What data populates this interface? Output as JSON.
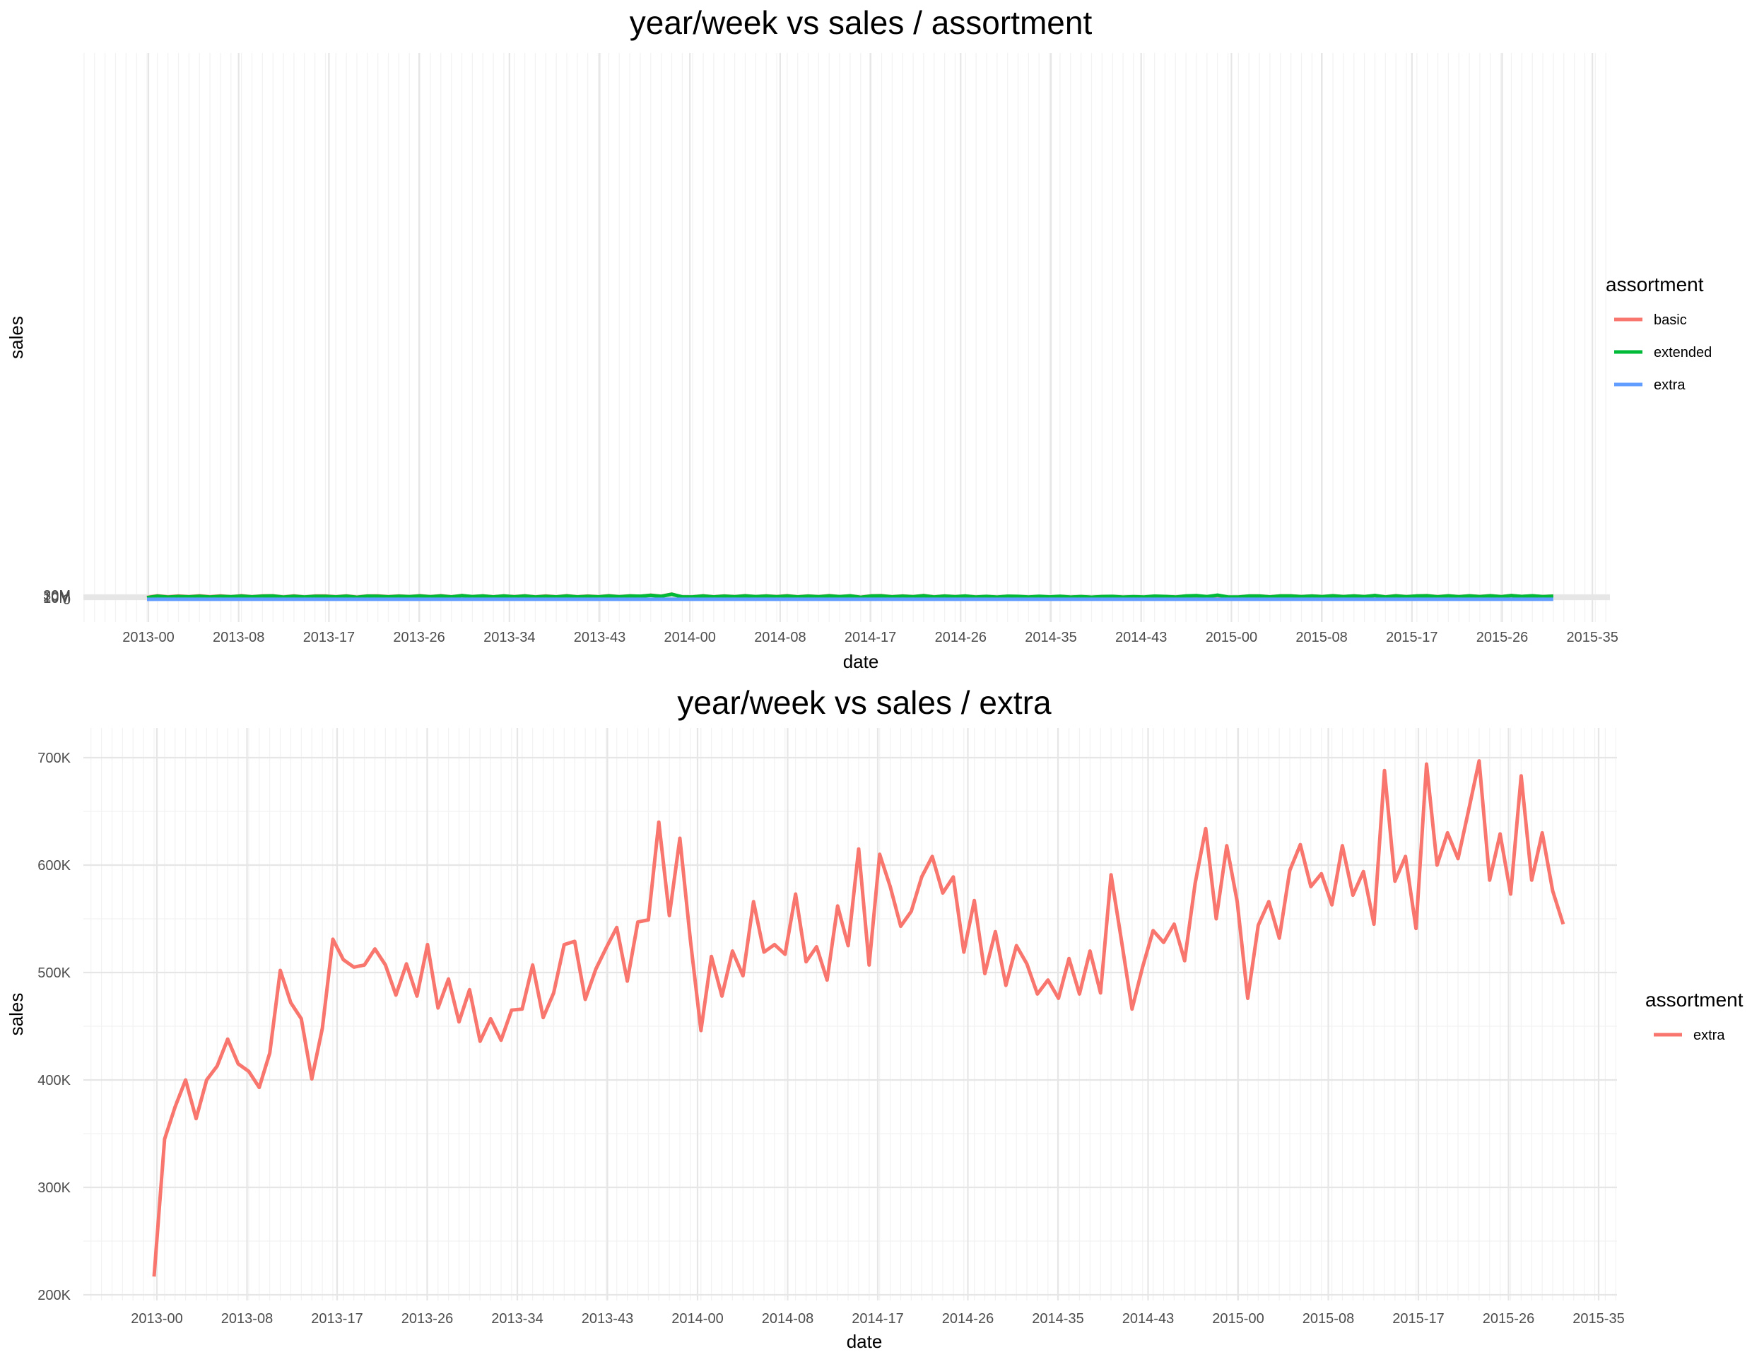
{
  "chart_data": [
    {
      "type": "line",
      "title": "year/week vs sales / assortment",
      "xlabel": "date",
      "ylabel": "sales",
      "x_ticks": [
        "2013-00",
        "2013-08",
        "2013-17",
        "2013-26",
        "2013-34",
        "2013-43",
        "2014-00",
        "2014-08",
        "2014-17",
        "2014-26",
        "2014-35",
        "2014-43",
        "2015-00",
        "2015-08",
        "2015-17",
        "2015-26",
        "2015-35"
      ],
      "y_ticks": [
        "0",
        "10M",
        "20M",
        "30M"
      ],
      "ylim": [
        -1500000,
        40000000
      ],
      "grid": true,
      "legend": {
        "title": "assortment",
        "position": "right"
      },
      "series": [
        {
          "name": "basic",
          "color": "#F8766D",
          "values": [
            13.5,
            26,
            17.5,
            24.4,
            18.5,
            25.8,
            17.8,
            25,
            18.2,
            26.6,
            18,
            25.5,
            25.6,
            16,
            25.1,
            16.5,
            24.1,
            24,
            17.8,
            25.4,
            15.5,
            24.9,
            25,
            18.7,
            24.6,
            19.5,
            26.3,
            18.6,
            26.6,
            17.4,
            27.8,
            19.3,
            25.4,
            17.3,
            25.5,
            18.4,
            26,
            16.8,
            24.2,
            17.6,
            26.1,
            17.6,
            23.7,
            17.8,
            26.3,
            18.5,
            25.5,
            22.4,
            30.6,
            22.6,
            37.9,
            17.2,
            17.6,
            25.9,
            17.5,
            24.9,
            18.3,
            26.9,
            18.5,
            25.2,
            19,
            26.3,
            17.7,
            24.3,
            18.6,
            27.1,
            19,
            25.7,
            15.2,
            25.1,
            26.7,
            18,
            24.6,
            18.6,
            27.8,
            17.1,
            24.4,
            18.7,
            24,
            15.9,
            20.3,
            15.3,
            21.5,
            20.2,
            15.3,
            20.6,
            15.6,
            21.1,
            15.3,
            19.5,
            14.8,
            19.3,
            20.1,
            15.3,
            18,
            15.2,
            22.3,
            19.9,
            16,
            23.6,
            24.9,
            18.2,
            27.5,
            15.2,
            15.9,
            24.3,
            24.7,
            17.7,
            25.4,
            25.3,
            19.3,
            24.2,
            19.6,
            26.2,
            19.2,
            25.4,
            19.5,
            27.9,
            17,
            26.4,
            18.3,
            24.9,
            26.6,
            18.3,
            25.9,
            18.8,
            25.7,
            19.9,
            26.5,
            19,
            27.9,
            20.3,
            25.8,
            19.2,
            23.6
          ]
        },
        {
          "name": "extended",
          "color": "#00BA38",
          "values": [
            12.5,
            23,
            16,
            21.3,
            18.1,
            22.9,
            17.2,
            22.3,
            18.4,
            23.5,
            18,
            23,
            24.6,
            15.8,
            22.6,
            16.6,
            21.6,
            21.9,
            17.6,
            23.1,
            15.2,
            23.2,
            22.6,
            18.2,
            22.6,
            19.1,
            24.3,
            18.5,
            24.5,
            17.4,
            26.8,
            19.6,
            24.1,
            17.3,
            24.3,
            18.1,
            24.4,
            16.9,
            22.3,
            17.4,
            24,
            17.7,
            22,
            17.9,
            24.4,
            18.3,
            24,
            22.7,
            28.9,
            22.4,
            37,
            17.4,
            17.3,
            24.4,
            17.5,
            23.4,
            18.6,
            25.4,
            18.9,
            23.5,
            18.7,
            24.9,
            17.6,
            23.1,
            18.5,
            25.4,
            19,
            25.4,
            15.2,
            24.2,
            25.3,
            18.2,
            23.1,
            18.6,
            26.3,
            17.1,
            23.5,
            18.4,
            24,
            16.6,
            21,
            16,
            22.6,
            21,
            16.4,
            21.8,
            17.6,
            22.1,
            15.8,
            20.3,
            15.3,
            20.1,
            21.3,
            15.8,
            19.4,
            16.6,
            23.1,
            20.8,
            16.6,
            24.8,
            26.9,
            19.6,
            30.5,
            17,
            16.6,
            23.9,
            23.9,
            17.6,
            24.8,
            24.6,
            19.3,
            23.5,
            19.6,
            25.6,
            19.7,
            24.7,
            19.4,
            28,
            16.9,
            25.3,
            18.3,
            24.2,
            26,
            18.2,
            25.2,
            18.7,
            25.2,
            19.8,
            26,
            18.9,
            27.2,
            20.4,
            25.6,
            19.6,
            23.2
          ]
        },
        {
          "name": "extra",
          "color": "#619CFF",
          "values": [
            0.22,
            0.35,
            0.38,
            0.4,
            0.36,
            0.4,
            0.41,
            0.44,
            0.42,
            0.41,
            0.39,
            0.42,
            0.5,
            0.47,
            0.46,
            0.4,
            0.45,
            0.53,
            0.51,
            0.5,
            0.51,
            0.52,
            0.51,
            0.48,
            0.51,
            0.48,
            0.53,
            0.47,
            0.49,
            0.45,
            0.48,
            0.44,
            0.46,
            0.44,
            0.47,
            0.47,
            0.51,
            0.46,
            0.48,
            0.53,
            0.53,
            0.48,
            0.5,
            0.52,
            0.54,
            0.49,
            0.55,
            0.55,
            0.64,
            0.55,
            0.63,
            0.52,
            0.45,
            0.52,
            0.48,
            0.52,
            0.5,
            0.57,
            0.52,
            0.53,
            0.52,
            0.57,
            0.51,
            0.52,
            0.49,
            0.56,
            0.53,
            0.62,
            0.51,
            0.61,
            0.58,
            0.54,
            0.56,
            0.59,
            0.61,
            0.57,
            0.59,
            0.52,
            0.57,
            0.5,
            0.54,
            0.49,
            0.53,
            0.51,
            0.48,
            0.49,
            0.48,
            0.51,
            0.48,
            0.52,
            0.48,
            0.59,
            0.53,
            0.47,
            0.51,
            0.54,
            0.53,
            0.54,
            0.51,
            0.58,
            0.63,
            0.55,
            0.62,
            0.56,
            0.48,
            0.54,
            0.57,
            0.53,
            0.6,
            0.62,
            0.58,
            0.59,
            0.56,
            0.62,
            0.57,
            0.59,
            0.55,
            0.69,
            0.59,
            0.61,
            0.54,
            0.69,
            0.6,
            0.63,
            0.61,
            0.65,
            0.7,
            0.59,
            0.63,
            0.57,
            0.68,
            0.59,
            0.63,
            0.58,
            0.55
          ]
        }
      ]
    },
    {
      "type": "line",
      "title": "year/week vs sales / extra",
      "xlabel": "date",
      "ylabel": "sales",
      "x_ticks": [
        "2013-00",
        "2013-08",
        "2013-17",
        "2013-26",
        "2013-34",
        "2013-43",
        "2014-00",
        "2014-08",
        "2014-17",
        "2014-26",
        "2014-35",
        "2014-43",
        "2015-00",
        "2015-08",
        "2015-17",
        "2015-26",
        "2015-35"
      ],
      "y_ticks": [
        "200K",
        "300K",
        "400K",
        "500K",
        "600K",
        "700K"
      ],
      "ylim": [
        195000,
        715000
      ],
      "grid": true,
      "legend": {
        "title": "assortment",
        "position": "right"
      },
      "series": [
        {
          "name": "extra",
          "color": "#F8766D",
          "values": [
            217,
            345,
            375,
            400,
            364,
            400,
            413,
            438,
            415,
            408,
            393,
            425,
            502,
            472,
            457,
            401,
            448,
            531,
            512,
            505,
            507,
            522,
            507,
            479,
            508,
            478,
            526,
            467,
            494,
            454,
            484,
            436,
            457,
            437,
            465,
            466,
            507,
            458,
            481,
            526,
            529,
            475,
            503,
            523,
            542,
            492,
            547,
            549,
            640,
            553,
            625,
            530,
            446,
            515,
            478,
            520,
            497,
            566,
            519,
            526,
            517,
            573,
            510,
            524,
            493,
            562,
            525,
            615,
            507,
            610,
            580,
            543,
            557,
            589,
            608,
            574,
            589,
            519,
            567,
            499,
            538,
            488,
            525,
            508,
            480,
            493,
            476,
            513,
            480,
            520,
            481,
            591,
            529,
            466,
            505,
            539,
            528,
            545,
            511,
            583,
            634,
            550,
            618,
            566,
            476,
            544,
            566,
            532,
            595,
            619,
            580,
            592,
            563,
            618,
            572,
            594,
            545,
            688,
            585,
            608,
            541,
            694,
            600,
            630,
            606,
            651,
            697,
            586,
            629,
            573,
            683,
            586,
            630,
            576,
            545
          ]
        }
      ]
    }
  ]
}
